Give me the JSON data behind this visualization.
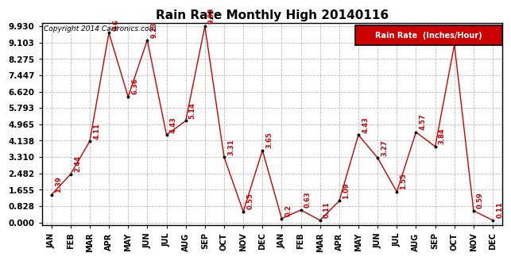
{
  "title": "Rain Rate Monthly High 20140116",
  "copyright": "Copyright 2014 Cartronics.com",
  "legend_label": "Rain Rate  (Inches/Hour)",
  "categories": [
    "JAN",
    "FEB",
    "MAR",
    "APR",
    "MAY",
    "JUN",
    "JUL",
    "AUG",
    "SEP",
    "OCT",
    "NOV",
    "DEC",
    "JAN",
    "FEB",
    "MAR",
    "APR",
    "MAY",
    "JUN",
    "JUL",
    "AUG",
    "SEP",
    "OCT",
    "NOV",
    "DEC"
  ],
  "values": [
    1.39,
    2.44,
    4.11,
    9.6,
    6.36,
    9.23,
    4.43,
    5.14,
    9.93,
    3.31,
    0.55,
    3.65,
    0.2,
    0.63,
    0.11,
    1.09,
    4.43,
    3.27,
    1.55,
    4.57,
    3.84,
    9.0,
    0.59,
    0.11
  ],
  "yticks": [
    0.0,
    0.828,
    1.655,
    2.482,
    3.31,
    4.138,
    4.965,
    5.793,
    6.62,
    7.447,
    8.275,
    9.103,
    9.93
  ],
  "ymax": 9.93,
  "line_color": "#cc0000",
  "marker_color": "#000000",
  "background_color": "#ffffff",
  "grid_color": "#bbbbbb",
  "title_fontsize": 11,
  "copyright_fontsize": 6.5,
  "label_fontsize": 6,
  "ytick_fontsize": 7.5,
  "xtick_fontsize": 7,
  "legend_bg": "#cc0000",
  "legend_text_color": "#ffffff",
  "legend_fontsize": 7
}
